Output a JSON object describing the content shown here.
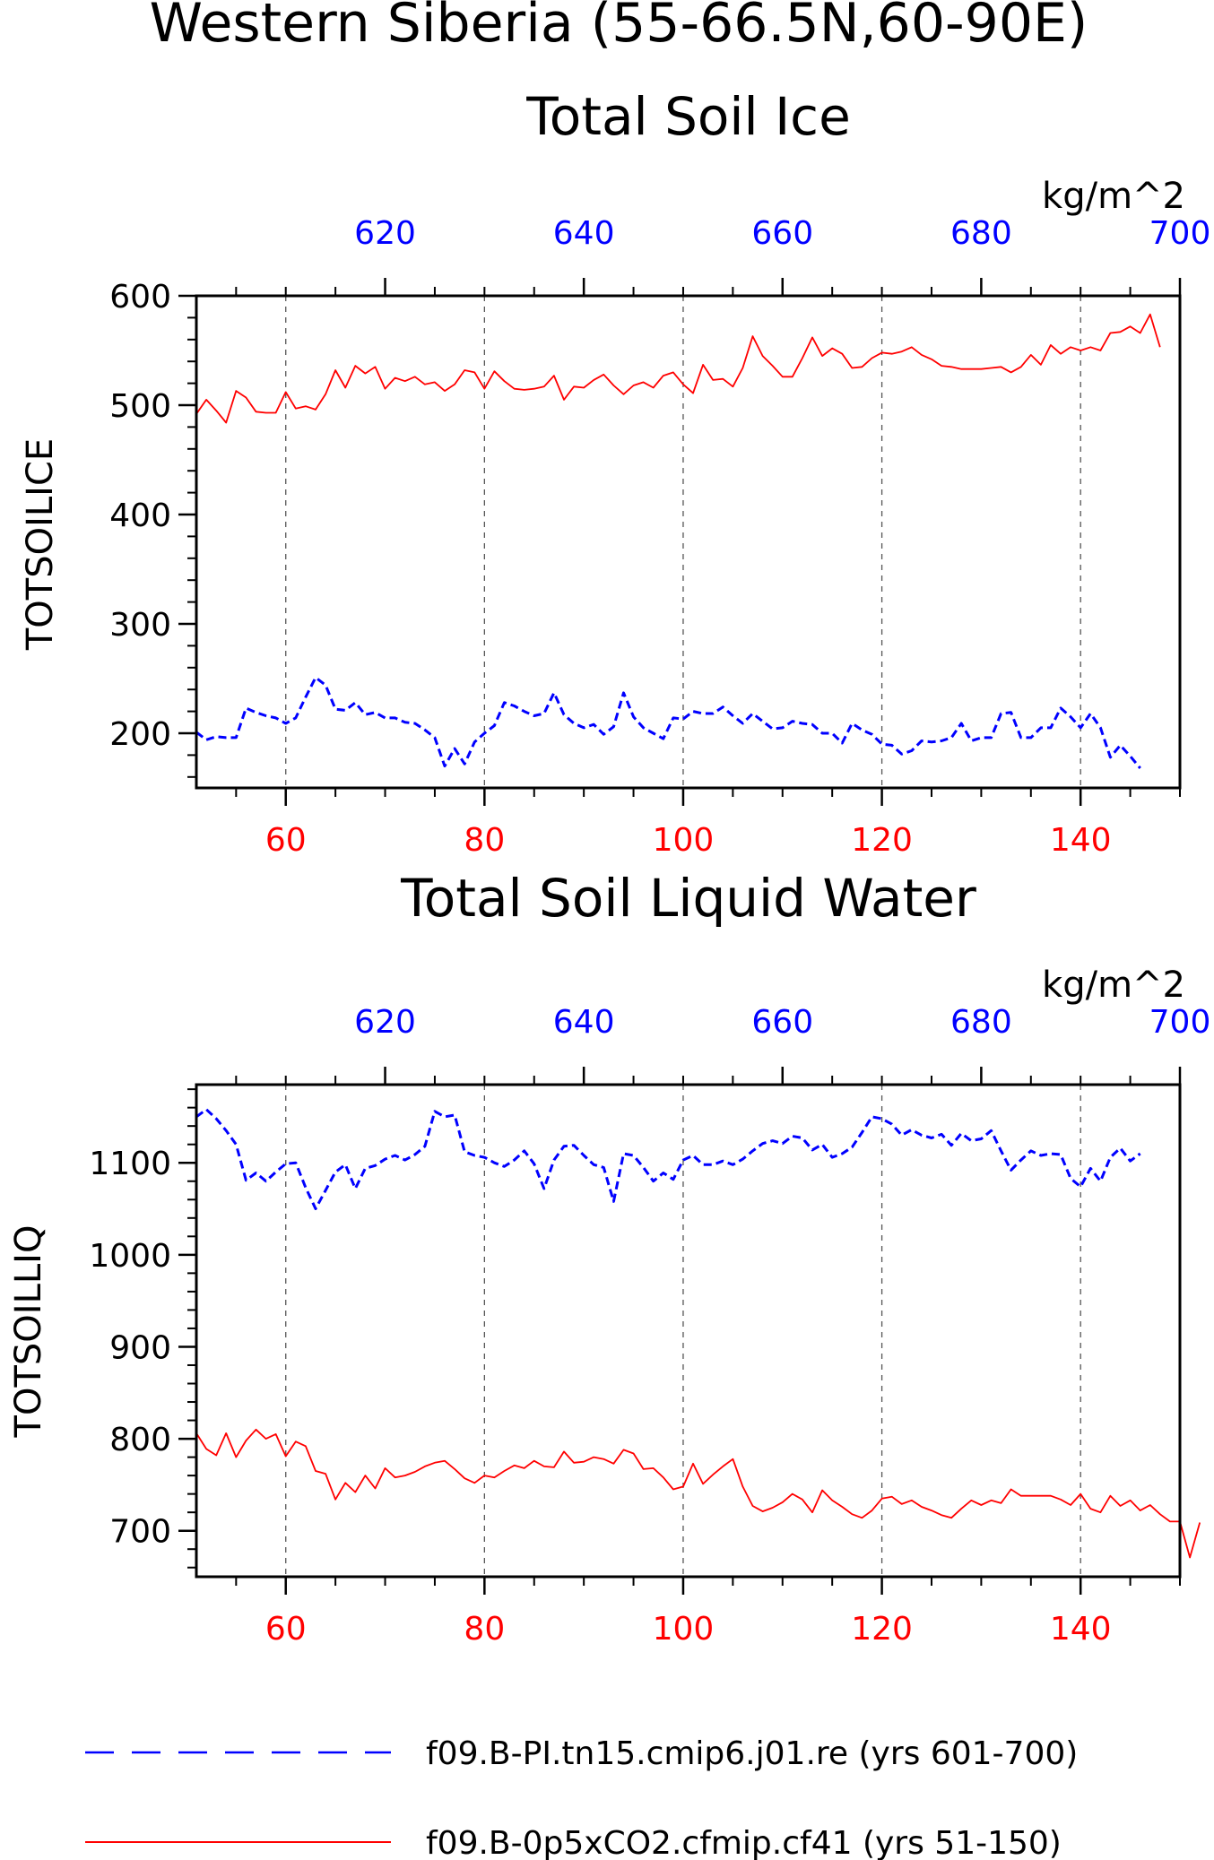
{
  "figure": {
    "title_line1": "Western Siberia (55-66.5N,60-90E)",
    "colors": {
      "red_series": "#ff0000",
      "blue_series": "#0000ff",
      "axis": "#000000",
      "grid": "#555555"
    }
  },
  "legend": {
    "entries": [
      {
        "label": "f09.B-PI.tn15.cmip6.j01.re (yrs 601-700)",
        "color": "#0000ff",
        "style": "dashed"
      },
      {
        "label": "f09.B-0p5xCO2.cfmip.cf41 (yrs 51-150)",
        "color": "#ff0000",
        "style": "solid"
      }
    ]
  },
  "chart_data": [
    {
      "type": "line",
      "title": "Total Soil Ice",
      "ylabel": "TOTSOILICE",
      "top_axis_units": "kg/m^2",
      "ylim": [
        150,
        600
      ],
      "yticks": [
        200,
        300,
        400,
        500,
        600
      ],
      "bottom_xlim": [
        51,
        150
      ],
      "bottom_xticks": [
        60,
        80,
        100,
        120,
        140
      ],
      "top_xlim": [
        601,
        700
      ],
      "top_xticks": [
        620,
        640,
        660,
        680,
        700
      ],
      "grid_x": [
        60,
        80,
        100,
        120,
        140
      ],
      "series": [
        {
          "axis": "bottom",
          "color": "#ff0000",
          "style": "solid",
          "x_start": 51,
          "x_step": 1,
          "values": [
            492,
            505,
            495,
            484,
            513,
            507,
            494,
            493,
            493,
            512,
            497,
            499,
            496,
            510,
            532,
            516,
            536,
            529,
            535,
            515,
            525,
            522,
            526,
            519,
            521,
            513,
            519,
            532,
            530,
            515,
            531,
            522,
            515,
            514,
            515,
            517,
            527,
            505,
            517,
            516,
            523,
            528,
            518,
            510,
            518,
            521,
            516,
            527,
            530,
            519,
            511,
            537,
            523,
            524,
            517,
            534,
            563,
            545,
            536,
            526,
            526,
            543,
            562,
            545,
            552,
            547,
            534,
            535,
            543,
            548,
            547,
            549,
            553,
            546,
            542,
            536,
            535,
            533,
            533,
            533,
            534,
            535,
            530,
            535,
            546,
            537,
            555,
            547,
            553,
            550,
            553,
            550,
            566,
            567,
            572,
            566,
            583,
            553
          ]
        },
        {
          "axis": "top",
          "color": "#0000ff",
          "style": "dashed",
          "x_start": 601,
          "x_step": 1,
          "values": [
            201,
            194,
            197,
            196,
            196,
            223,
            219,
            216,
            214,
            209,
            214,
            233,
            251,
            244,
            222,
            221,
            228,
            217,
            219,
            214,
            214,
            210,
            209,
            203,
            196,
            170,
            186,
            172,
            192,
            200,
            207,
            228,
            225,
            220,
            216,
            218,
            237,
            217,
            209,
            205,
            208,
            199,
            206,
            237,
            215,
            205,
            200,
            195,
            214,
            213,
            220,
            218,
            218,
            224,
            216,
            209,
            218,
            211,
            204,
            205,
            211,
            209,
            208,
            200,
            200,
            191,
            209,
            203,
            199,
            190,
            189,
            181,
            184,
            193,
            192,
            193,
            196,
            209,
            193,
            196,
            196,
            218,
            219,
            196,
            196,
            205,
            205,
            223,
            215,
            205,
            218,
            205,
            178,
            189,
            179,
            168
          ]
        }
      ]
    },
    {
      "type": "line",
      "title": "Total Soil Liquid Water",
      "ylabel": "TOTSOILLIQ",
      "top_axis_units": "kg/m^2",
      "ylim": [
        650,
        1185
      ],
      "yticks": [
        700,
        800,
        900,
        1000,
        1100
      ],
      "bottom_xlim": [
        51,
        150
      ],
      "bottom_xticks": [
        60,
        80,
        100,
        120,
        140
      ],
      "top_xlim": [
        601,
        700
      ],
      "top_xticks": [
        620,
        640,
        660,
        680,
        700
      ],
      "grid_x": [
        60,
        80,
        100,
        120,
        140
      ],
      "series": [
        {
          "axis": "bottom",
          "color": "#ff0000",
          "style": "solid",
          "x_start": 51,
          "x_step": 1,
          "values": [
            806,
            789,
            782,
            806,
            780,
            798,
            810,
            800,
            805,
            781,
            797,
            792,
            765,
            762,
            734,
            752,
            742,
            760,
            746,
            768,
            758,
            760,
            764,
            770,
            774,
            776,
            767,
            757,
            752,
            760,
            758,
            765,
            771,
            768,
            776,
            770,
            769,
            786,
            774,
            775,
            780,
            778,
            773,
            788,
            784,
            767,
            768,
            758,
            745,
            748,
            773,
            751,
            761,
            770,
            778,
            748,
            727,
            721,
            725,
            731,
            740,
            734,
            720,
            744,
            733,
            726,
            718,
            714,
            722,
            735,
            737,
            729,
            733,
            726,
            722,
            717,
            714,
            724,
            733,
            728,
            733,
            730,
            745,
            738,
            738,
            738,
            738,
            734,
            728,
            740,
            724,
            720,
            738,
            727,
            733,
            722,
            728,
            718,
            710,
            710,
            671,
            709
          ]
        },
        {
          "axis": "top",
          "color": "#0000ff",
          "style": "dashed",
          "x_start": 601,
          "x_step": 1,
          "values": [
            1150,
            1158,
            1148,
            1135,
            1120,
            1081,
            1089,
            1080,
            1090,
            1099,
            1100,
            1073,
            1050,
            1070,
            1090,
            1098,
            1072,
            1094,
            1097,
            1104,
            1108,
            1103,
            1109,
            1118,
            1156,
            1150,
            1152,
            1112,
            1108,
            1106,
            1100,
            1096,
            1103,
            1113,
            1099,
            1072,
            1103,
            1118,
            1119,
            1108,
            1098,
            1095,
            1058,
            1110,
            1108,
            1095,
            1080,
            1089,
            1082,
            1103,
            1108,
            1098,
            1098,
            1102,
            1098,
            1104,
            1113,
            1121,
            1124,
            1121,
            1129,
            1127,
            1114,
            1120,
            1106,
            1110,
            1117,
            1133,
            1150,
            1148,
            1142,
            1130,
            1136,
            1130,
            1127,
            1131,
            1119,
            1132,
            1124,
            1126,
            1135,
            1113,
            1092,
            1103,
            1113,
            1108,
            1110,
            1109,
            1083,
            1074,
            1094,
            1080,
            1106,
            1116,
            1102,
            1110
          ]
        }
      ]
    }
  ]
}
